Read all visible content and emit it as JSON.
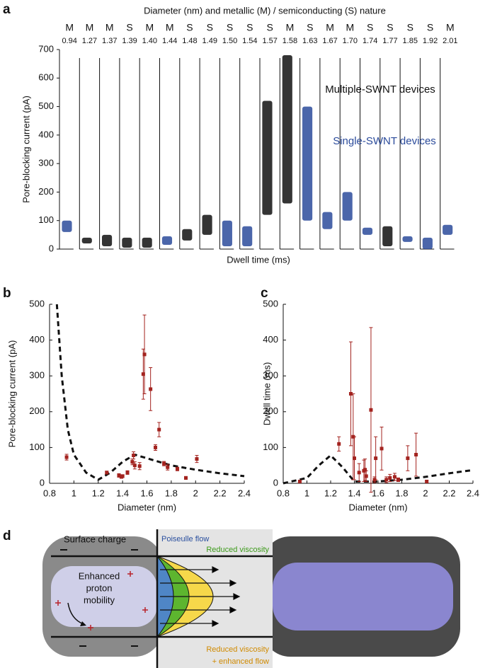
{
  "chart_data": [
    {
      "type": "range",
      "panel_label": "a",
      "title": "Diameter (nm) and metallic (M) / semiconducting (S) nature",
      "x_label": "Dwell time (ms)",
      "y_label": "Pore-blocking current (pA)",
      "categories": [
        "0.94",
        "1.27",
        "1.37",
        "1.39",
        "1.40",
        "1.44",
        "1.48",
        "1.49",
        "1.50",
        "1.54",
        "1.57",
        "1.58",
        "1.63",
        "1.67",
        "1.70",
        "1.74",
        "1.77",
        "1.85",
        "1.92",
        "2.01"
      ],
      "nature": [
        "M",
        "M",
        "M",
        "S",
        "M",
        "M",
        "S",
        "S",
        "S",
        "S",
        "S",
        "M",
        "S",
        "M",
        "M",
        "S",
        "S",
        "S",
        "S",
        "M"
      ],
      "ylim": [
        0,
        700
      ],
      "yticks": [
        0,
        100,
        200,
        300,
        400,
        500,
        600,
        700
      ],
      "series": [
        {
          "name": "Multiple-SWNT devices",
          "color": "#111111",
          "low": [
            null,
            20,
            10,
            5,
            5,
            null,
            30,
            50,
            null,
            null,
            120,
            160,
            null,
            null,
            null,
            null,
            10,
            null,
            null,
            null
          ],
          "high": [
            null,
            40,
            50,
            40,
            40,
            null,
            70,
            120,
            null,
            null,
            520,
            680,
            null,
            null,
            null,
            null,
            80,
            null,
            null,
            null
          ]
        },
        {
          "name": "Single-SWNT devices",
          "color": "#2b4b9b",
          "low": [
            60,
            null,
            null,
            null,
            null,
            15,
            null,
            null,
            10,
            10,
            null,
            null,
            100,
            70,
            100,
            50,
            null,
            25,
            0,
            50
          ],
          "high": [
            100,
            null,
            null,
            null,
            null,
            45,
            null,
            null,
            100,
            80,
            null,
            null,
            500,
            130,
            200,
            75,
            null,
            45,
            40,
            85
          ]
        }
      ]
    },
    {
      "type": "scatter",
      "panel_label": "b",
      "x_label": "Diameter (nm)",
      "y_label": "Pore-blocking current (pA)",
      "color": "#a3231f",
      "x": [
        0.94,
        1.27,
        1.37,
        1.39,
        1.4,
        1.44,
        1.48,
        1.49,
        1.5,
        1.54,
        1.57,
        1.58,
        1.63,
        1.67,
        1.7,
        1.74,
        1.77,
        1.85,
        1.92,
        2.01
      ],
      "values": [
        73,
        30,
        22,
        18,
        20,
        30,
        60,
        78,
        50,
        48,
        305,
        360,
        263,
        100,
        150,
        55,
        45,
        40,
        15,
        68
      ],
      "errors": [
        8,
        4,
        5,
        4,
        4,
        5,
        8,
        10,
        10,
        10,
        70,
        110,
        60,
        8,
        20,
        6,
        8,
        5,
        4,
        10
      ],
      "model": {
        "x": [
          0.86,
          0.9,
          0.95,
          1.0,
          1.1,
          1.2,
          1.3,
          1.4,
          1.5,
          1.6,
          1.8,
          2.0,
          2.2,
          2.4
        ],
        "values": [
          500,
          300,
          150,
          80,
          30,
          10,
          30,
          60,
          80,
          70,
          50,
          38,
          28,
          20
        ]
      },
      "xlim": [
        0.8,
        2.4
      ],
      "xticks": [
        0.8,
        1,
        1.2,
        1.4,
        1.6,
        1.8,
        2,
        2.2,
        2.4
      ],
      "ylim": [
        0,
        500
      ],
      "yticks": [
        0,
        100,
        200,
        300,
        400,
        500
      ]
    },
    {
      "type": "scatter",
      "panel_label": "c",
      "x_label": "Diameter (nm)",
      "y_label": "Dwell time (ms)",
      "color": "#a3231f",
      "x": [
        0.94,
        1.27,
        1.37,
        1.39,
        1.4,
        1.44,
        1.48,
        1.49,
        1.5,
        1.54,
        1.57,
        1.58,
        1.63,
        1.67,
        1.7,
        1.74,
        1.77,
        1.85,
        1.92,
        2.01
      ],
      "values": [
        5,
        110,
        250,
        130,
        70,
        30,
        35,
        38,
        20,
        205,
        10,
        70,
        97,
        10,
        15,
        18,
        10,
        70,
        80,
        5
      ],
      "errors": [
        3,
        20,
        145,
        120,
        60,
        25,
        30,
        30,
        15,
        230,
        8,
        60,
        60,
        8,
        10,
        10,
        5,
        35,
        60,
        3
      ],
      "model": {
        "x": [
          0.8,
          1.0,
          1.1,
          1.2,
          1.3,
          1.4,
          1.6,
          1.8,
          2.0,
          2.2,
          2.4
        ],
        "values": [
          0,
          15,
          50,
          78,
          45,
          5,
          5,
          10,
          18,
          28,
          37
        ]
      },
      "xlim": [
        0.8,
        2.4
      ],
      "xticks": [
        0.8,
        1,
        1.2,
        1.4,
        1.6,
        1.8,
        2,
        2.2,
        2.4
      ],
      "ylim": [
        0,
        500
      ],
      "yticks": [
        0,
        100,
        200,
        300,
        400,
        500
      ]
    }
  ],
  "diagram": {
    "panel_label": "d",
    "surface_charge": "Surface charge",
    "proton": [
      "Enhanced",
      "proton",
      "mobility"
    ],
    "poiseuille": "Poiseulle flow",
    "reduced_viscosity": "Reduced viscosity",
    "combined": [
      "Reduced viscosity",
      "+ enhanced flow"
    ]
  }
}
